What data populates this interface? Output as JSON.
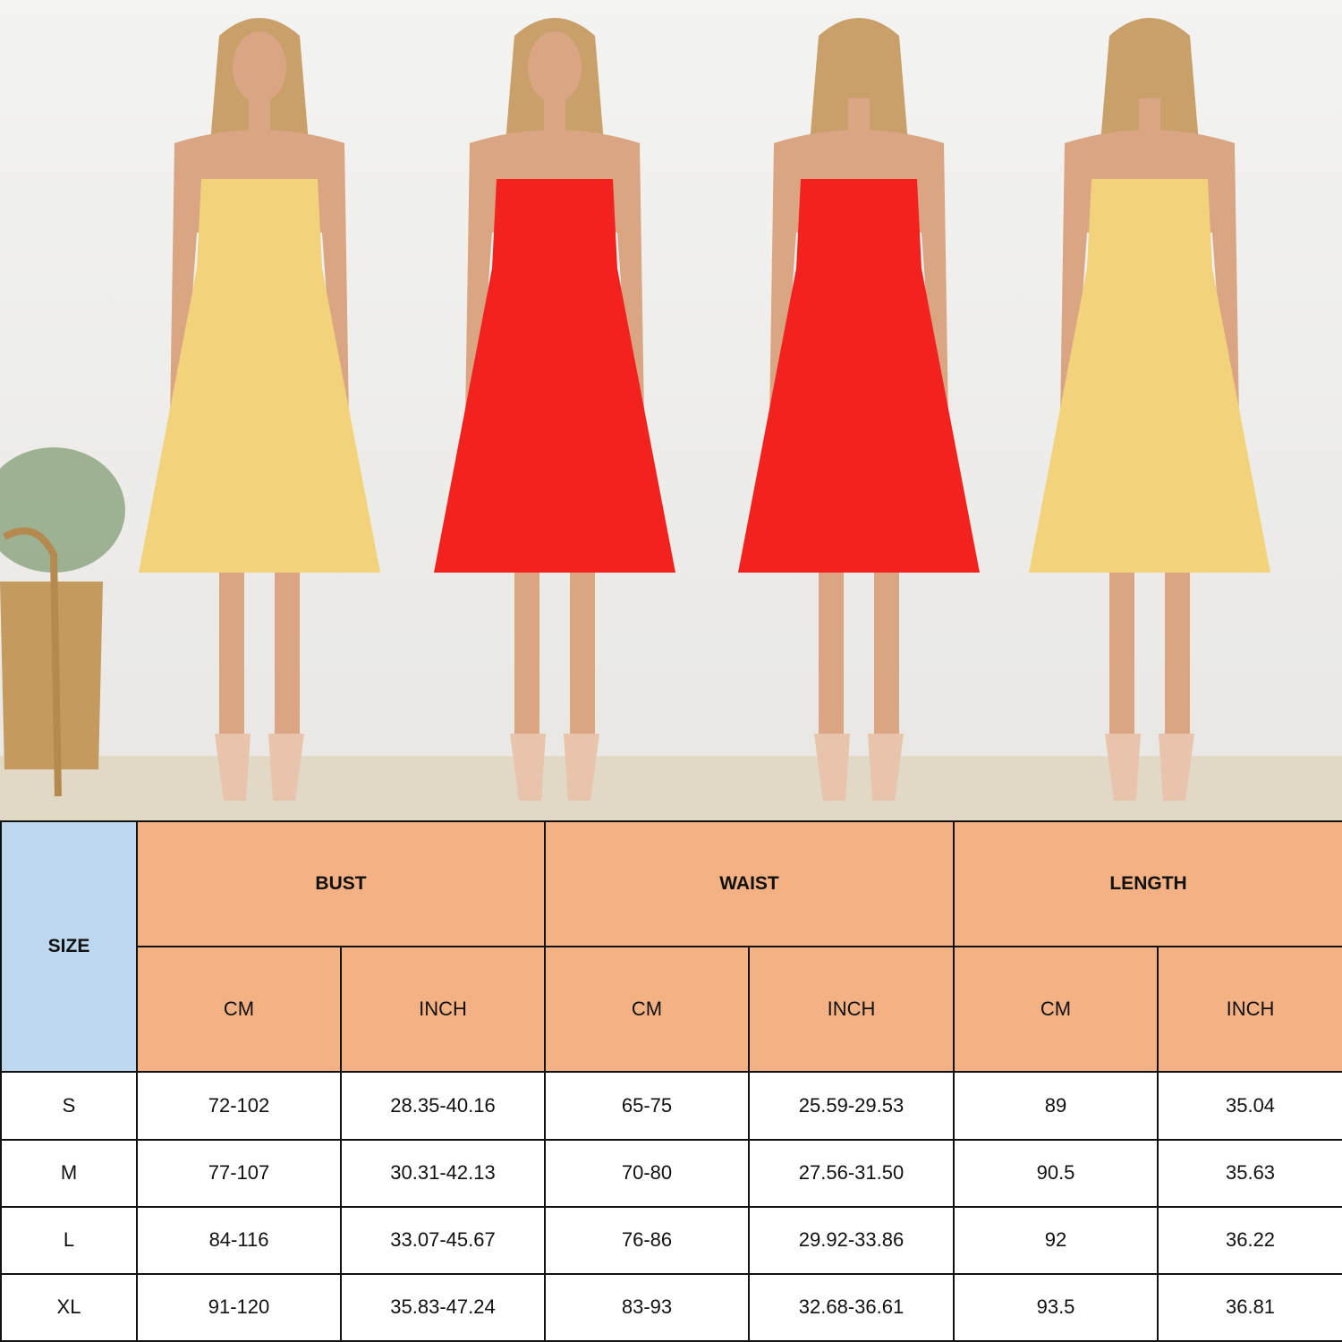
{
  "photo": {
    "models": [
      {
        "view": "front",
        "dress_color": "#f2d27a"
      },
      {
        "view": "front",
        "dress_color": "#f2231f"
      },
      {
        "view": "back",
        "dress_color": "#f2231f"
      },
      {
        "view": "back",
        "dress_color": "#f2d27a"
      }
    ]
  },
  "size_chart": {
    "size_header": "SIZE",
    "groups": [
      {
        "label": "BUST",
        "sub": [
          "CM",
          "INCH"
        ]
      },
      {
        "label": "WAIST",
        "sub": [
          "CM",
          "INCH"
        ]
      },
      {
        "label": "LENGTH",
        "sub": [
          "CM",
          "INCH"
        ]
      }
    ],
    "rows": [
      {
        "size": "S",
        "values": [
          "72-102",
          "28.35-40.16",
          "65-75",
          "25.59-29.53",
          "89",
          "35.04"
        ]
      },
      {
        "size": "M",
        "values": [
          "77-107",
          "30.31-42.13",
          "70-80",
          "27.56-31.50",
          "90.5",
          "35.63"
        ]
      },
      {
        "size": "L",
        "values": [
          "84-116",
          "33.07-45.67",
          "76-86",
          "29.92-33.86",
          "92",
          "36.22"
        ]
      },
      {
        "size": "XL",
        "values": [
          "91-120",
          "35.83-47.24",
          "83-93",
          "32.68-36.61",
          "93.5",
          "36.81"
        ]
      }
    ],
    "colors": {
      "size_header": "#bdd7ee",
      "group_header": "#f4b183"
    }
  }
}
